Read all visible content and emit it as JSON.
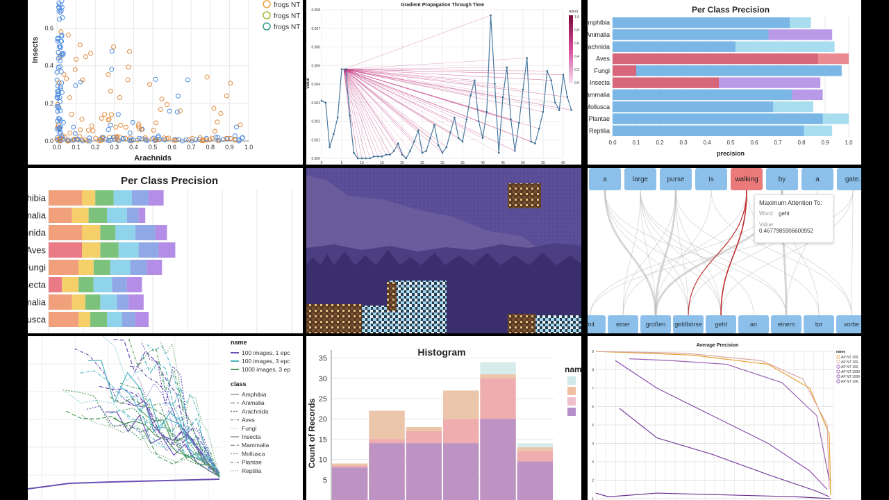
{
  "panels": {
    "scatter": {
      "ylabel": "Insects",
      "xlabel": "Arachnids",
      "xticks": [
        "0.0",
        "0.1",
        "0.2",
        "0.3",
        "0.4",
        "0.5",
        "0.6",
        "0.7",
        "0.8",
        "0.9",
        "1.0"
      ],
      "yticks": [
        "0.0",
        "0.2",
        "0.4",
        "0.6"
      ],
      "legend": [
        "frogs NT",
        "frogs NT",
        "frogs NT"
      ],
      "legend_colors": [
        "#e8a33b",
        "#a8b83a",
        "#3a9a8a"
      ]
    },
    "gradient": {
      "title": "Gradient Propagation Through Time",
      "ylabel": "value",
      "legend_title": "Attent",
      "legend_ticks": [
        "1.0",
        "0.8",
        "0.6",
        "0.4",
        "0.2",
        "0.0"
      ],
      "xticks": [
        "0",
        "5",
        "10",
        "15",
        "20",
        "25",
        "30",
        "35",
        "40",
        "45",
        "50",
        "55",
        "60"
      ],
      "yticks": [
        "0.000",
        "0.001",
        "0.002",
        "0.003",
        "0.004",
        "0.005",
        "0.006",
        "0.007",
        "0.008"
      ],
      "values": [
        0.0031,
        0.003,
        0.0006,
        0.0013,
        0.0022,
        0.0048,
        0.0048,
        0.0023,
        0.0003,
        0.0,
        0.0,
        0.0,
        0.0,
        0.0001,
        0.0001,
        0.0001,
        0.0002,
        0.0002,
        0.0004,
        0.0008,
        0.0002,
        0.0,
        0.0004,
        0.0009,
        0.0015,
        0.0003,
        0.0004,
        0.0011,
        0.0018,
        0.0007,
        0.0003,
        0.0006,
        0.0014,
        0.0022,
        0.0011,
        0.0009,
        0.0021,
        0.0034,
        0.0042,
        0.002,
        0.0011,
        0.0025,
        0.0077,
        0.004,
        0.0003,
        0.0033,
        0.0049,
        0.0021,
        0.0004,
        0.0019,
        0.0037,
        0.0054,
        0.0009,
        0.0008,
        0.0016,
        0.0025,
        0.0047,
        0.0042,
        0.003,
        0.0026,
        0.0045,
        0.0033,
        0.0026
      ]
    },
    "precision_top": {
      "title": "Per Class Precision",
      "xlabel": "precision",
      "xticks": [
        "0.0",
        "0.1",
        "0.2",
        "0.3",
        "0.4",
        "0.5",
        "0.6",
        "0.7",
        "0.8",
        "0.9",
        "1.0"
      ],
      "labels": [
        "Amphibia",
        "Animalia",
        "Arachnida",
        "Aves",
        "Fungi",
        "Insecta",
        "Mammalia",
        "Mollusca",
        "Plantae",
        "Reptilia"
      ]
    },
    "precision_mid": {
      "title": "Per Class Precision",
      "labels": [
        "Amphibia",
        "Animalia",
        "Arachnida",
        "Aves",
        "Fungi",
        "Insecta",
        "Mammalia",
        "Mollusca"
      ]
    },
    "attention": {
      "top_tokens": [
        "a",
        "large",
        "purse",
        "is",
        "walking",
        "by",
        "a",
        "gate."
      ],
      "bottom_tokens": [
        "mit",
        "einer",
        "großen",
        "geldbörse",
        "geht",
        "an",
        "einem",
        "tor",
        "vorbe"
      ],
      "tooltip_title": "Maximum Attention To:",
      "tooltip_word_key": "Word:",
      "tooltip_word": "geht",
      "tooltip_value_key": "Value:",
      "tooltip_value": "0.4677985906600952"
    },
    "lines": {
      "legend_name_title": "name",
      "names": [
        "100 images, 1 epc",
        "100 images, 3 epc",
        "1000 images, 3 ep"
      ],
      "name_colors": [
        "#6a4fb3",
        "#4fb3c4",
        "#4f9a58"
      ],
      "legend_class_title": "class",
      "classes": [
        "Amphibia",
        "Animalia",
        "Arachnida",
        "Aves",
        "Fungi",
        "Insecta",
        "Mammalia",
        "Mollusca",
        "Plantae",
        "Reptilia"
      ]
    },
    "histogram": {
      "title": "Histogram",
      "ylabel": "Count of Records",
      "yticks": [
        "5",
        "10",
        "15",
        "20",
        "25",
        "30",
        "35"
      ],
      "legend_title": "nam"
    },
    "avgprec": {
      "title": "Average Precision",
      "legend_title": "name",
      "legend": [
        "AP NT 100,",
        "AP NT 100,",
        "AP NT 100,",
        "AP NT 1000",
        "AP NT 1000",
        "AP NT 10K,"
      ],
      "yticks": [
        "1",
        "2",
        "3",
        "4",
        "5",
        "6",
        "7",
        "8",
        "9"
      ]
    }
  },
  "chart_data": [
    {
      "type": "scatter",
      "xlabel": "Arachnids",
      "ylabel": "Insects",
      "xlim": [
        0,
        1
      ],
      "ylim": [
        0,
        0.75
      ]
    },
    {
      "type": "line",
      "title": "Gradient Propagation Through Time",
      "xlim": [
        0,
        60
      ],
      "ylim": [
        0,
        0.008
      ]
    },
    {
      "type": "bar",
      "title": "Per Class Precision",
      "xlabel": "precision",
      "categories": [
        "Amphibia",
        "Animalia",
        "Arachnida",
        "Aves",
        "Fungi",
        "Insecta",
        "Mammalia",
        "Mollusca",
        "Plantae",
        "Reptilia"
      ],
      "series": [
        {
          "values": [
            0.75,
            0.66,
            0.52,
            0.87,
            0.1,
            0.45,
            0.76,
            0.68,
            0.89,
            0.81
          ]
        },
        {
          "values": [
            0.84,
            0.93,
            0.94,
            1.0,
            0.97,
            0.88,
            0.89,
            0.85,
            1.0,
            0.93
          ]
        }
      ]
    },
    {
      "type": "bar",
      "title": "Per Class Precision",
      "categories": [
        "Amphibia",
        "Animalia",
        "Arachnida",
        "Aves",
        "Fungi",
        "Insecta",
        "Mammalia",
        "Mollusca"
      ],
      "series": [
        {
          "values": [
            1.0,
            0.7,
            1.0,
            1.0,
            0.9,
            0.4,
            0.7,
            0.9
          ]
        },
        {
          "values": [
            0.4,
            0.5,
            0.55,
            0.55,
            0.45,
            0.5,
            0.4,
            0.35
          ]
        },
        {
          "values": [
            0.55,
            0.55,
            0.45,
            0.55,
            0.5,
            0.45,
            0.45,
            0.5
          ]
        },
        {
          "values": [
            0.55,
            0.6,
            0.6,
            0.6,
            0.6,
            0.55,
            0.5,
            0.45
          ]
        },
        {
          "values": [
            0.5,
            0.35,
            0.6,
            0.6,
            0.5,
            0.45,
            0.35,
            0.4
          ]
        },
        {
          "values": [
            0.45,
            0.2,
            0.35,
            0.5,
            0.45,
            0.45,
            0.45,
            0.4
          ]
        }
      ]
    },
    {
      "type": "line",
      "legend": [
        "100 images, 1 epc",
        "100 images, 3 epc",
        "1000 images, 3 ep"
      ]
    },
    {
      "type": "bar",
      "title": "Histogram",
      "ylabel": "Count of Records",
      "ylim": [
        0,
        37
      ],
      "series": [
        {
          "values": [
            8,
            14,
            14,
            14,
            20,
            9.5
          ]
        },
        {
          "values": [
            8.5,
            15,
            17,
            20,
            30,
            12
          ]
        },
        {
          "values": [
            9,
            22,
            18,
            27,
            31,
            13
          ]
        },
        {
          "values": [
            9,
            22,
            18,
            27,
            34,
            14
          ]
        }
      ]
    },
    {
      "type": "line",
      "title": "Average Precision",
      "ylim": [
        1,
        9
      ]
    }
  ]
}
